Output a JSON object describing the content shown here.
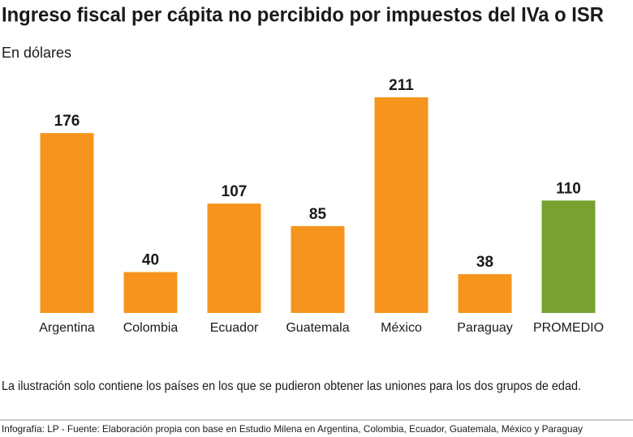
{
  "chart_data": {
    "type": "bar",
    "title": "Ingreso fiscal per cápita no percibido por impuestos del IVa o ISR",
    "subtitle": "En dólares",
    "categories": [
      "Argentina",
      "Colombia",
      "Ecuador",
      "Guatemala",
      "México",
      "Paraguay",
      "PROMEDIO"
    ],
    "values": [
      176,
      40,
      107,
      85,
      211,
      38,
      110
    ],
    "colors": [
      "#f7941d",
      "#f7941d",
      "#f7941d",
      "#f7941d",
      "#f7941d",
      "#f7941d",
      "#78a22f"
    ],
    "note": "La ilustración solo contiene los países en los que se pudieron obtener las uniones para los dos grupos de edad.",
    "source": "Infografía: LP - Fuente: Elaboración propia con base en Estudio Milena en Argentina, Colombia, Ecuador, Guatemala, México y Paraguay"
  }
}
